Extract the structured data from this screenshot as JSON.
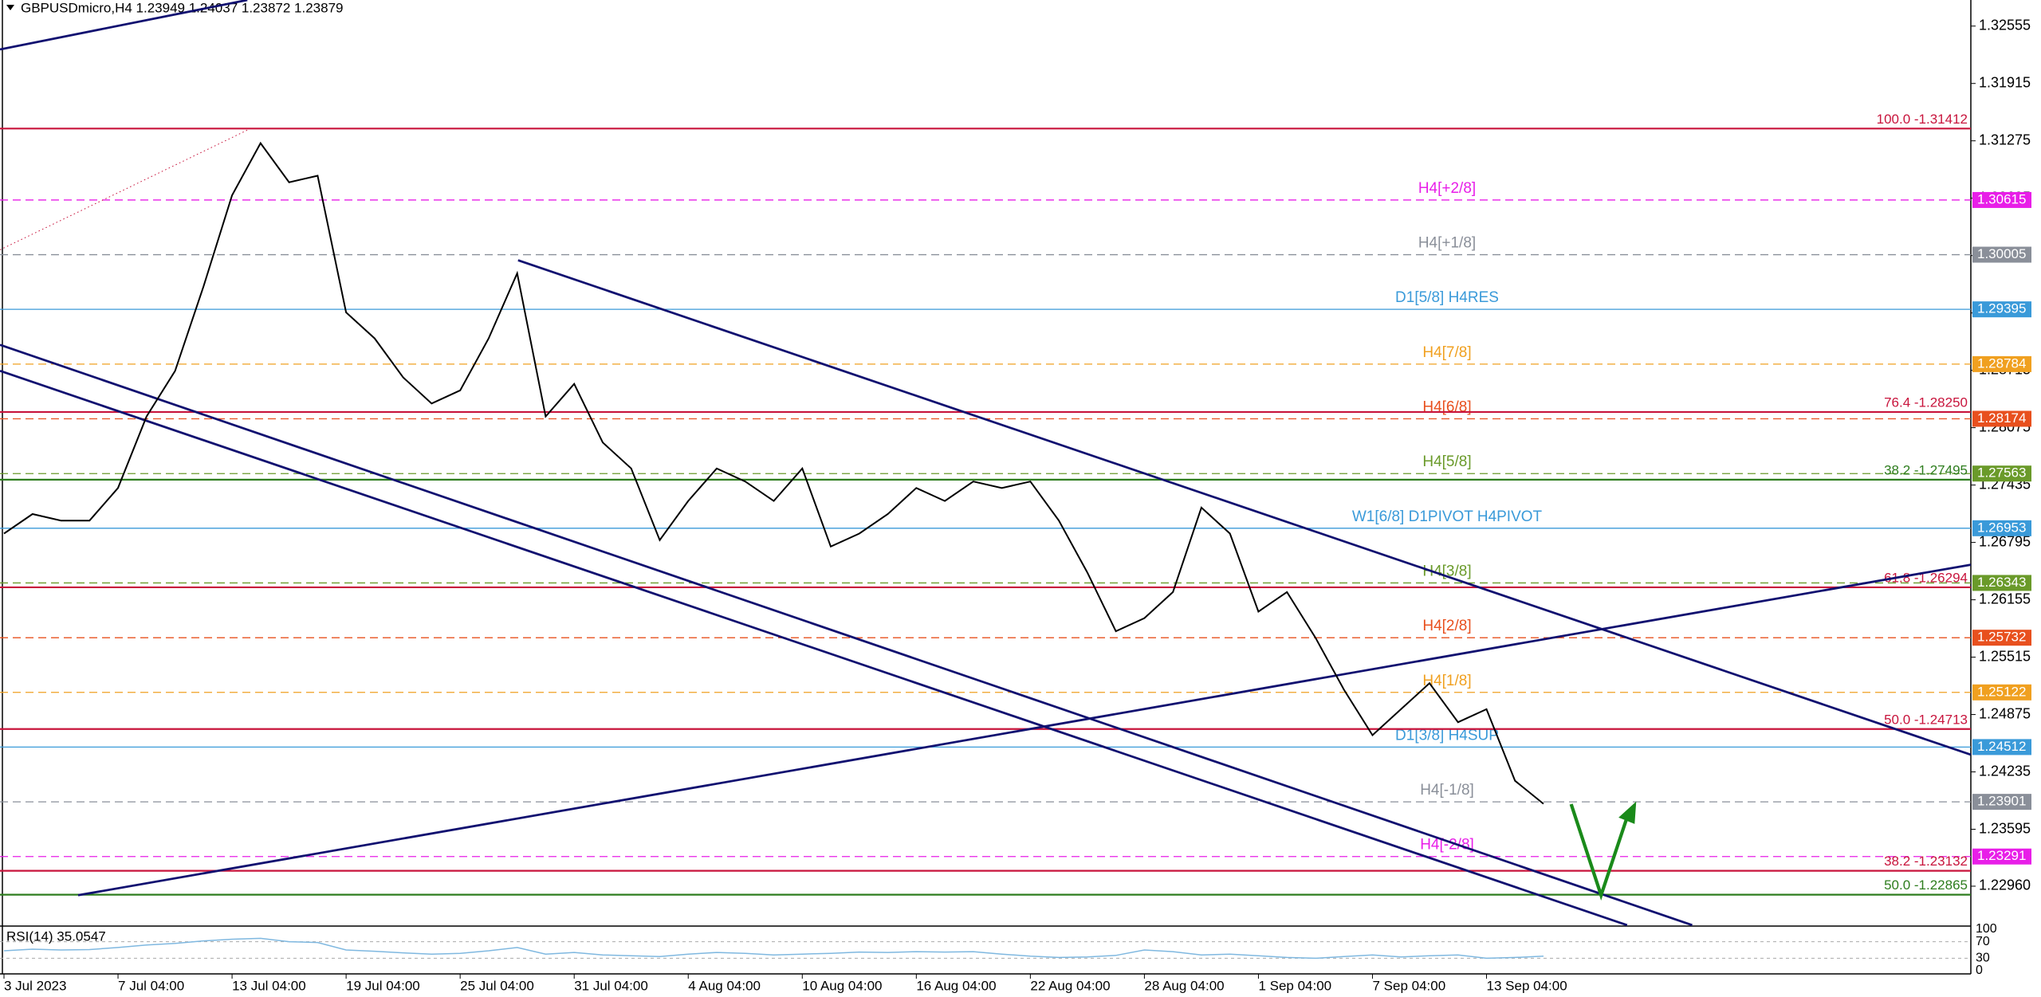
{
  "chart_data": {
    "type": "line",
    "title": "GBPUSDmicro,H4  1.23949 1.24037 1.23872 1.23879",
    "color": "#000000",
    "categories": [
      "3 Jul 2023",
      null,
      null,
      null,
      "7 Jul 04:00",
      null,
      null,
      null,
      "13 Jul 04:00",
      null,
      null,
      null,
      "19 Jul 04:00",
      null,
      null,
      null,
      "25 Jul 04:00",
      null,
      null,
      null,
      "31 Jul 04:00",
      null,
      null,
      null,
      "4 Aug 04:00",
      null,
      null,
      null,
      "10 Aug 04:00",
      null,
      null,
      null,
      "16 Aug 04:00",
      null,
      null,
      null,
      "22 Aug 04:00",
      null,
      null,
      null,
      "28 Aug 04:00",
      null,
      null,
      null,
      "1 Sep 04:00",
      null,
      null,
      null,
      "7 Sep 04:00",
      null,
      null,
      null,
      "13 Sep 04:00",
      null,
      null
    ],
    "values": [
      1.26894,
      1.27112,
      1.27039,
      1.27039,
      1.27402,
      1.282,
      1.28708,
      1.29652,
      1.30668,
      1.31249,
      1.30813,
      1.30886,
      1.29361,
      1.29071,
      1.28636,
      1.28345,
      1.28491,
      1.29071,
      1.29797,
      1.282,
      1.28563,
      1.2791,
      1.2762,
      1.26821,
      1.27257,
      1.2762,
      1.27474,
      1.27257,
      1.2762,
      1.26749,
      1.26894,
      1.27112,
      1.27402,
      1.27257,
      1.27474,
      1.27402,
      1.27474,
      1.27039,
      1.26458,
      1.25805,
      1.2595,
      1.26241,
      1.27184,
      1.26894,
      1.26023,
      1.26241,
      1.25732,
      1.25152,
      1.24644,
      1.24934,
      1.25224,
      1.24789,
      1.24934,
      1.24136,
      1.23879
    ],
    "ylim": [
      1.22524,
      1.32846
    ],
    "yticks": [
      1.32555,
      1.31915,
      1.31275,
      1.30635,
      1.29995,
      1.29355,
      1.28715,
      1.28075,
      1.27435,
      1.26795,
      1.26155,
      1.25515,
      1.24875,
      1.24235,
      1.23595,
      {
        "value": 1.2296,
        "label": "1.22960"
      }
    ],
    "fib_levels": [
      {
        "label": "100.0 -1.31412",
        "value": 1.31412,
        "color": "#c8143c"
      },
      {
        "label": "76.4 -1.28250",
        "value": 1.2825,
        "color": "#c8143c"
      },
      {
        "label": "38.2 -1.27495",
        "value": 1.27495,
        "color": "#2e7d1e"
      },
      {
        "label": "61.8 -1.26294",
        "value": 1.26294,
        "color": "#c8143c"
      },
      {
        "label": "50.0 -1.24713",
        "value": 1.24713,
        "color": "#c8143c"
      },
      {
        "label": "38.2 -1.23132",
        "value": 1.23132,
        "color": "#c8143c"
      },
      {
        "label": "50.0 -1.22865",
        "value": 1.22865,
        "color": "#2e7d1e"
      }
    ],
    "levels": [
      {
        "label": "H4[+2/8]",
        "value": 1.30615,
        "color": "#e81ee8",
        "dashed": true
      },
      {
        "label": "H4[+1/8]",
        "value": 1.30005,
        "color": "#8a8f99",
        "dashed": true
      },
      {
        "label": "D1[5/8] H4RES",
        "value": 1.29395,
        "color": "#3a9ad9",
        "dashed": false
      },
      {
        "label": "H4[7/8]",
        "value": 1.28784,
        "color": "#f0a020",
        "dashed": true
      },
      {
        "label": "H4[6/8]",
        "value": 1.28174,
        "color": "#e8501e",
        "dashed": true
      },
      {
        "label": "H4[5/8]",
        "value": 1.27563,
        "color": "#6a9a2a",
        "dashed": true
      },
      {
        "label": "W1[6/8] D1PIVOT H4PIVOT",
        "value": 1.26953,
        "color": "#3a9ad9",
        "dashed": false
      },
      {
        "label": "H4[3/8]",
        "value": 1.26343,
        "color": "#6a9a2a",
        "dashed": true
      },
      {
        "label": "H4[2/8]",
        "value": 1.25732,
        "color": "#e8501e",
        "dashed": true
      },
      {
        "label": "H4[1/8]",
        "value": 1.25122,
        "color": "#f0a020",
        "dashed": true
      },
      {
        "label": "D1[3/8] H4SUP",
        "value": 1.24512,
        "color": "#3a9ad9",
        "dashed": false
      },
      {
        "label": "H4[-1/8]",
        "value": 1.23901,
        "color": "#8a8f99",
        "dashed": true
      },
      {
        "label": "H4[-2/8]",
        "value": 1.23291,
        "color": "#e81ee8",
        "dashed": true
      }
    ],
    "rsi": {
      "title": "RSI(14) 35.0547",
      "color": "#7fb8e0",
      "ylim": [
        0,
        100
      ],
      "yticks": [
        0,
        30,
        70,
        100
      ],
      "values": [
        48,
        52,
        50,
        51,
        56,
        62,
        66,
        72,
        76,
        78,
        70,
        68,
        50,
        47,
        43,
        40,
        42,
        48,
        56,
        40,
        44,
        38,
        36,
        34,
        40,
        44,
        42,
        38,
        40,
        42,
        45,
        44,
        46,
        45,
        46,
        40,
        35,
        32,
        33,
        37,
        50,
        46,
        38,
        40,
        36,
        32,
        30,
        34,
        38,
        33,
        36,
        38,
        30,
        32,
        35
      ]
    }
  }
}
